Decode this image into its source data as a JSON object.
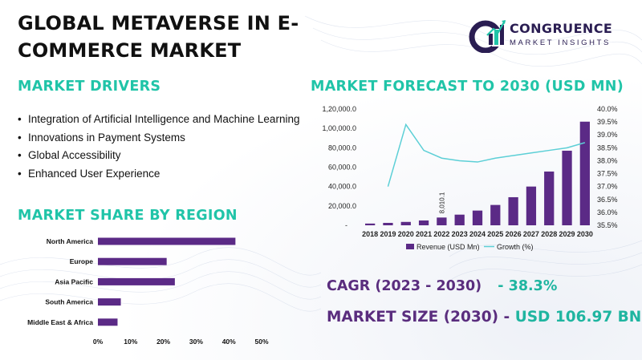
{
  "title": "GLOBAL METAVERSE IN E-COMMERCE MARKET",
  "logo": {
    "name": "CONGRUENCE",
    "tagline": "MARKET INSIGHTS"
  },
  "drivers": {
    "heading": "MARKET DRIVERS",
    "items": [
      "Integration of Artificial Intelligence and Machine Learning",
      "Innovations in Payment Systems",
      "Global Accessibility",
      "Enhanced User Experience"
    ]
  },
  "colors": {
    "accent": "#20c4a8",
    "purple": "#5a2d7e",
    "bar": "#5b2a86",
    "line": "#5ccfd6"
  },
  "forecast_heading": "MARKET FORECAST TO 2030 (USD MN)",
  "region_heading": "MARKET SHARE BY REGION",
  "stats": {
    "cagr_label": "CAGR (2023 - 2030)",
    "cagr_value": "- 38.3%",
    "size_label": "MARKET SIZE (2030) -",
    "size_value": "USD 106.97 BN"
  },
  "chart_data": [
    {
      "type": "bar+line",
      "categories": [
        "2018",
        "2019",
        "2020",
        "2021",
        "2022",
        "2023",
        "2024",
        "2025",
        "2026",
        "2027",
        "2028",
        "2029",
        "2030"
      ],
      "series": [
        {
          "name": "Revenue (USD Mn)",
          "type": "bar",
          "axis": "left",
          "values": [
            1800,
            2500,
            3500,
            5000,
            8010.1,
            11000,
            15200,
            21000,
            29000,
            40000,
            55500,
            77000,
            106970
          ]
        },
        {
          "name": "Growth (%)",
          "type": "line",
          "axis": "right",
          "values": [
            null,
            37.0,
            39.4,
            38.4,
            38.1,
            38.0,
            37.95,
            38.1,
            38.2,
            38.3,
            38.4,
            38.5,
            38.7
          ]
        }
      ],
      "y_left": {
        "ticks": [
          "-",
          "20,000.0",
          "40,000.0",
          "60,000.0",
          "80,000.0",
          "1,00,000.0",
          "1,20,000.0"
        ],
        "range": [
          0,
          120000
        ]
      },
      "y_right": {
        "ticks": [
          "35.5%",
          "36.0%",
          "36.5%",
          "37.0%",
          "37.5%",
          "38.0%",
          "38.5%",
          "39.0%",
          "39.5%",
          "40.0%"
        ],
        "range": [
          35.5,
          40.0
        ]
      },
      "data_labels": [
        {
          "category": "2022",
          "text": "8,010.1"
        }
      ],
      "legend_position": "bottom"
    },
    {
      "type": "bar",
      "orientation": "horizontal",
      "categories": [
        "North America",
        "Europe",
        "Asia Pacific",
        "South America",
        "Middle East & Africa"
      ],
      "values": [
        42,
        21,
        23.5,
        7,
        6
      ],
      "x_ticks": [
        "0%",
        "10%",
        "20%",
        "30%",
        "40%",
        "50%"
      ],
      "xlim": [
        0,
        50
      ]
    }
  ]
}
